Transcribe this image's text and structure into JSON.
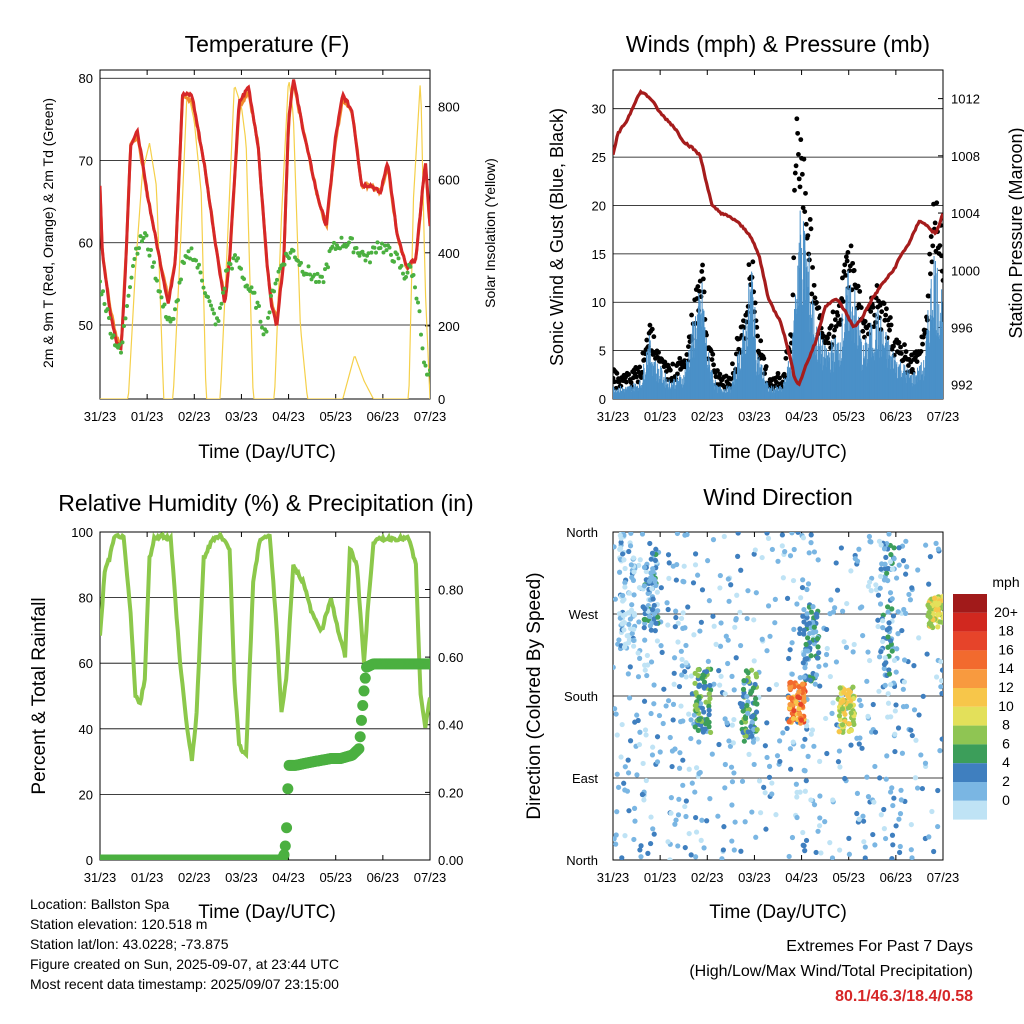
{
  "colors": {
    "temp_2m": "#d62728",
    "temp_9m": "#f08a2c",
    "dewpoint": "#4bb040",
    "solar": "#f5d04a",
    "wind": "#4a90c8",
    "gust": "#000000",
    "pressure": "#a51c1c",
    "rh": "#8cc84b",
    "precip": "#4bb040",
    "extremes": "#d62728"
  },
  "x_ticks": [
    "31/23",
    "01/23",
    "02/23",
    "03/23",
    "04/23",
    "05/23",
    "06/23",
    "07/23"
  ],
  "x_label": "Time (Day/UTC)",
  "info": {
    "location": "Location: Ballston Spa",
    "elevation": "Station elevation: 120.518 m",
    "latlon": "Station lat/lon: 43.0228; -73.875",
    "created": "Figure created on Sun, 2025-09-07, at 23:44 UTC",
    "latest": "Most recent data timestamp: 2025/09/07 23:15:00"
  },
  "extremes": {
    "title": "Extremes For Past 7 Days",
    "subtitle": "(High/Low/Max Wind/Total Precipitation)",
    "values": "80.1/46.3/18.4/0.58"
  },
  "chart_data": [
    {
      "type": "line",
      "title": "Temperature (F)",
      "xlabel": "Time (Day/UTC)",
      "ylabel": "2m & 9m T (Red, Orange) & 2m Td (Green)",
      "ylabel_right": "Solar Insolation (Yellow)",
      "ylim": [
        41,
        81
      ],
      "yticks": [
        50,
        60,
        70,
        80
      ],
      "ylim_right": [
        0,
        900
      ],
      "yticks_right": [
        0,
        200,
        400,
        600,
        800
      ],
      "x_days": [
        0,
        7
      ],
      "series": [
        {
          "name": "2m T",
          "x": [
            0,
            0.05,
            0.2,
            0.35,
            0.45,
            0.55,
            0.65,
            0.8,
            1.0,
            1.2,
            1.45,
            1.6,
            1.75,
            1.95,
            2.2,
            2.5,
            2.65,
            2.75,
            2.95,
            3.15,
            3.35,
            3.55,
            3.65,
            3.75,
            3.9,
            4.0,
            4.1,
            4.3,
            4.6,
            4.8,
            5.0,
            5.15,
            5.35,
            5.55,
            5.75,
            5.95,
            6.1,
            6.3,
            6.5,
            6.7,
            6.8,
            6.9,
            7.0
          ],
          "values": [
            67,
            59,
            52,
            48,
            47,
            58,
            72,
            73.5,
            66,
            60,
            52.5,
            58,
            78,
            78,
            70,
            58,
            52.5,
            58,
            77,
            79,
            72,
            57,
            52,
            50,
            58,
            75,
            80,
            74,
            66,
            62,
            73,
            78,
            76,
            67,
            67,
            66,
            70,
            61,
            57,
            58,
            64,
            70,
            62
          ]
        },
        {
          "name": "9m T",
          "x": [
            0,
            0.05,
            0.2,
            0.35,
            0.45,
            0.55,
            0.65,
            0.8,
            1.0,
            1.2,
            1.45,
            1.6,
            1.75,
            1.95,
            2.2,
            2.5,
            2.65,
            2.75,
            2.95,
            3.15,
            3.35,
            3.55,
            3.65,
            3.75,
            3.9,
            4.0,
            4.1,
            4.3,
            4.6,
            4.8,
            5.0,
            5.15,
            5.35,
            5.55,
            5.75,
            5.95,
            6.1,
            6.3,
            6.5,
            6.7,
            6.8,
            6.9,
            7.0
          ],
          "values": [
            66.5,
            59,
            52.5,
            48.5,
            47.5,
            58,
            72,
            73,
            66,
            60,
            53,
            58,
            77.5,
            77.5,
            70,
            58,
            53,
            58,
            76.5,
            78.5,
            72,
            57,
            52.5,
            50.5,
            58,
            74.5,
            79.5,
            74,
            66,
            62,
            72.5,
            77.5,
            76,
            67,
            67,
            66,
            69.5,
            61,
            57,
            58,
            64,
            69.5,
            62
          ]
        },
        {
          "name": "2m Td",
          "x": [
            0,
            0.1,
            0.25,
            0.45,
            0.6,
            0.75,
            0.95,
            1.15,
            1.35,
            1.55,
            1.75,
            1.95,
            2.15,
            2.35,
            2.5,
            2.7,
            2.9,
            3.1,
            3.3,
            3.5,
            3.7,
            3.9,
            4.1,
            4.3,
            4.5,
            4.7,
            4.9,
            5.1,
            5.3,
            5.5,
            5.7,
            5.9,
            6.1,
            6.3,
            6.45,
            6.6,
            6.75,
            6.85,
            6.95,
            7.0
          ],
          "values": [
            55,
            53,
            49,
            46.5,
            54,
            59,
            61,
            57,
            52,
            50,
            57,
            59,
            56,
            52,
            50,
            57,
            58,
            55,
            53,
            49,
            55,
            58,
            59,
            57,
            56,
            55,
            59,
            60,
            60,
            59,
            58,
            60,
            59,
            58,
            56,
            57,
            53,
            46,
            43,
            44
          ]
        },
        {
          "name": "Solar",
          "axis": "right",
          "x": [
            0,
            0.6,
            0.75,
            0.9,
            1.05,
            1.2,
            1.35,
            1.55,
            1.7,
            1.85,
            2.0,
            2.15,
            2.25,
            2.4,
            2.55,
            2.7,
            2.85,
            3.0,
            3.1,
            3.25,
            3.4,
            3.55,
            3.7,
            3.85,
            4.0,
            4.1,
            4.25,
            4.4,
            4.55,
            4.7,
            4.85,
            5.0,
            5.15,
            5.4,
            5.6,
            5.8,
            6.0,
            6.15,
            6.3,
            6.45,
            6.55,
            6.65,
            6.8,
            6.9,
            7.0
          ],
          "values": [
            0,
            0,
            350,
            620,
            700,
            580,
            0,
            0,
            400,
            850,
            760,
            560,
            0,
            0,
            0,
            420,
            860,
            800,
            700,
            0,
            0,
            0,
            0,
            500,
            880,
            780,
            200,
            0,
            0,
            0,
            0,
            0,
            0,
            120,
            50,
            0,
            0,
            0,
            0,
            0,
            0,
            550,
            880,
            300,
            0
          ]
        }
      ]
    },
    {
      "type": "scatter",
      "title": "Winds (mph) & Pressure (mb)",
      "xlabel": "Time (Day/UTC)",
      "ylabel": "Sonic Wind & Gust (Blue, Black)",
      "ylabel_right": "Station Pressure (Maroon)",
      "ylim": [
        0,
        34
      ],
      "yticks": [
        0,
        5,
        10,
        15,
        20,
        25,
        30
      ],
      "ylim_right": [
        991,
        1014
      ],
      "yticks_right": [
        992,
        996,
        1000,
        1004,
        1008,
        1012
      ],
      "x_days": [
        0,
        7
      ],
      "series": [
        {
          "name": "Wind",
          "x": [
            0,
            0.3,
            0.6,
            0.75,
            0.9,
            1.2,
            1.5,
            1.75,
            1.9,
            2.0,
            2.2,
            2.5,
            2.8,
            2.95,
            3.05,
            3.3,
            3.6,
            3.8,
            3.95,
            4.1,
            4.3,
            4.5,
            4.8,
            5.0,
            5.15,
            5.3,
            5.6,
            5.9,
            6.1,
            6.35,
            6.6,
            6.8,
            6.95
          ],
          "values": [
            1,
            1,
            1.5,
            5,
            3,
            1.5,
            2,
            7,
            9,
            4,
            1,
            1,
            6,
            11,
            4,
            1,
            1,
            4,
            15,
            13,
            6,
            4,
            5,
            10,
            8,
            4,
            7,
            4,
            3,
            2,
            3,
            12,
            9
          ]
        },
        {
          "name": "Gust",
          "x": [
            0,
            0.3,
            0.6,
            0.75,
            0.9,
            1.2,
            1.5,
            1.75,
            1.9,
            2.0,
            2.2,
            2.5,
            2.8,
            2.95,
            3.05,
            3.3,
            3.6,
            3.8,
            3.9,
            3.95,
            4.1,
            4.3,
            4.5,
            4.8,
            5.0,
            5.15,
            5.3,
            5.6,
            5.9,
            6.1,
            6.35,
            6.6,
            6.8,
            6.95
          ],
          "values": [
            2.5,
            2,
            3,
            7.5,
            5,
            3,
            3.5,
            10,
            13.5,
            6,
            2.5,
            2,
            9,
            15.5,
            7,
            2,
            2,
            8,
            32,
            27,
            22,
            10,
            7,
            9,
            16,
            13,
            8,
            11,
            7,
            5,
            4,
            6,
            21,
            16
          ]
        },
        {
          "name": "Pressure",
          "axis": "right",
          "x": [
            0,
            0.1,
            0.3,
            0.5,
            0.6,
            0.8,
            1.0,
            1.3,
            1.5,
            1.7,
            1.85,
            2.1,
            2.3,
            2.6,
            2.75,
            2.9,
            3.1,
            3.3,
            3.45,
            3.55,
            3.75,
            3.85,
            3.95,
            4.05,
            4.3,
            4.5,
            4.75,
            4.95,
            5.1,
            5.25,
            5.5,
            5.7,
            5.95,
            6.1,
            6.3,
            6.5,
            6.7,
            6.85,
            7.0
          ],
          "values": [
            1008,
            1009.5,
            1010.5,
            1012,
            1012.5,
            1012,
            1011,
            1010,
            1009,
            1008.5,
            1008,
            1004.5,
            1004,
            1003.5,
            1003,
            1002.5,
            1001,
            998,
            997,
            996.5,
            994,
            992.5,
            992,
            993,
            995,
            997.5,
            998,
            997,
            996,
            996.5,
            998,
            999,
            1000,
            1001,
            1002,
            1003.5,
            1003,
            1002.5,
            1004
          ]
        }
      ]
    },
    {
      "type": "line",
      "title": "Relative Humidity (%) & Precipitation (in)",
      "xlabel": "Time (Day/UTC)",
      "ylabel": "Percent & Total Rainfall",
      "ylim": [
        0,
        100
      ],
      "yticks": [
        0,
        20,
        40,
        60,
        80,
        100
      ],
      "ylim_right": [
        0,
        0.97
      ],
      "yticks_right": [
        0.0,
        0.2,
        0.4,
        0.6,
        0.8
      ],
      "x_days": [
        0,
        7
      ],
      "series": [
        {
          "name": "RH",
          "x": [
            0,
            0.1,
            0.2,
            0.3,
            0.4,
            0.5,
            0.65,
            0.75,
            0.85,
            0.95,
            1.05,
            1.15,
            1.3,
            1.5,
            1.7,
            1.85,
            1.95,
            2.05,
            2.2,
            2.4,
            2.55,
            2.75,
            2.85,
            2.95,
            3.1,
            3.25,
            3.4,
            3.6,
            3.75,
            3.85,
            3.95,
            4.1,
            4.3,
            4.5,
            4.7,
            4.9,
            5.05,
            5.2,
            5.3,
            5.45,
            5.6,
            5.7,
            5.8,
            6.0,
            6.3,
            6.55,
            6.7,
            6.8,
            6.9,
            7.0
          ],
          "values": [
            68,
            88,
            92,
            98,
            99,
            98,
            75,
            50,
            48,
            55,
            92,
            98,
            99,
            98,
            60,
            40,
            30,
            45,
            92,
            98,
            99,
            95,
            55,
            35,
            32,
            85,
            98,
            99,
            70,
            45,
            55,
            90,
            85,
            75,
            70,
            80,
            70,
            62,
            95,
            90,
            60,
            80,
            97,
            98,
            98,
            98,
            90,
            50,
            40,
            50
          ]
        },
        {
          "name": "Total Precipitation",
          "axis": "right",
          "x": [
            0,
            3.85,
            3.92,
            3.96,
            4.0,
            4.15,
            4.5,
            4.9,
            5.1,
            5.35,
            5.5,
            5.55,
            5.6,
            5.65,
            5.8,
            6.2,
            6.6,
            7.0
          ],
          "values": [
            0,
            0,
            0.02,
            0.1,
            0.28,
            0.28,
            0.29,
            0.3,
            0.3,
            0.31,
            0.33,
            0.42,
            0.5,
            0.57,
            0.58,
            0.58,
            0.58,
            0.58
          ]
        }
      ]
    },
    {
      "type": "scatter",
      "title": "Wind Direction",
      "xlabel": "Time (Day/UTC)",
      "ylabel": "Direction (Colored By Speed)",
      "ylim": [
        0,
        360
      ],
      "yticks": [
        "North",
        "East",
        "South",
        "West",
        "North"
      ],
      "x_days": [
        0,
        7
      ],
      "legend_title": "mph",
      "legend_labels": [
        "20+",
        "18",
        "16",
        "14",
        "12",
        "10",
        "8",
        "6",
        "4",
        "2",
        "0"
      ],
      "legend_colors": [
        "#a11a1a",
        "#d1281f",
        "#e6442a",
        "#f26a2e",
        "#f89a3f",
        "#f7c64a",
        "#e3e05a",
        "#8fc553",
        "#3c9e5a",
        "#3f7fbf",
        "#7ab6e3",
        "#bfe3f5"
      ],
      "clusters": [
        {
          "x": 0.3,
          "dir_min": 230,
          "dir_max": 360,
          "speed": 1
        },
        {
          "x": 0.8,
          "dir_min": 250,
          "dir_max": 345,
          "speed": 3
        },
        {
          "x": 1.9,
          "dir_min": 140,
          "dir_max": 210,
          "speed": 6
        },
        {
          "x": 2.9,
          "dir_min": 130,
          "dir_max": 210,
          "speed": 5
        },
        {
          "x": 3.9,
          "dir_min": 150,
          "dir_max": 195,
          "speed": 15
        },
        {
          "x": 4.2,
          "dir_min": 195,
          "dir_max": 280,
          "speed": 4
        },
        {
          "x": 4.95,
          "dir_min": 140,
          "dir_max": 190,
          "speed": 10
        },
        {
          "x": 5.8,
          "dir_min": 190,
          "dir_max": 350,
          "speed": 3
        },
        {
          "x": 6.85,
          "dir_min": 255,
          "dir_max": 290,
          "speed": 10
        }
      ]
    }
  ]
}
